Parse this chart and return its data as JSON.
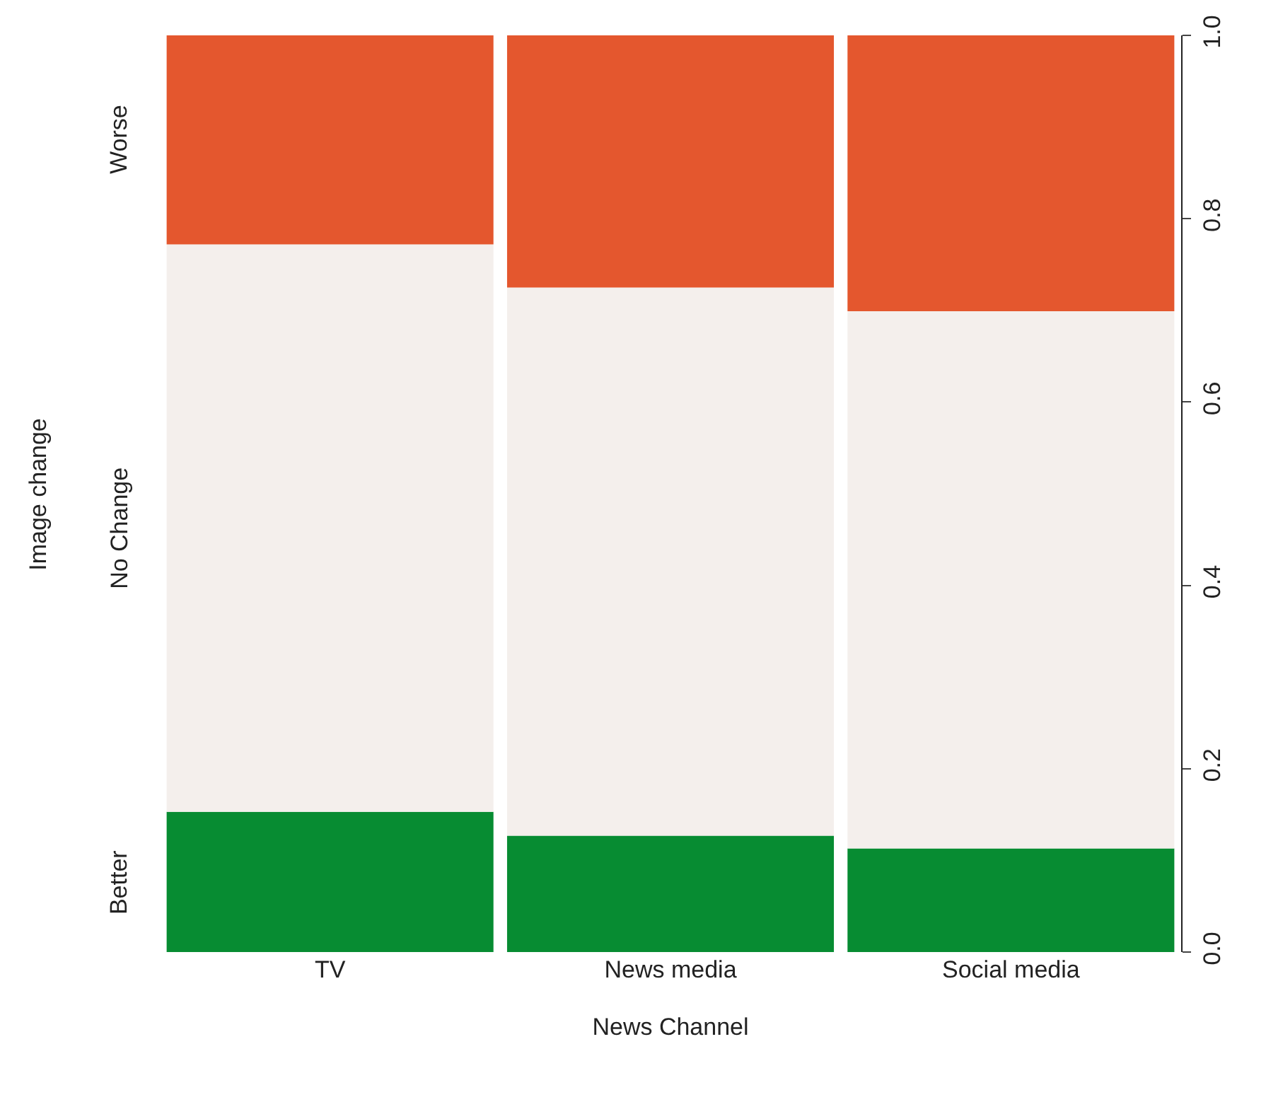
{
  "chart_data": {
    "type": "bar",
    "stacked": true,
    "xlabel": "News Channel",
    "ylabel": "Image change",
    "categories": [
      "TV",
      "News media",
      "Social media"
    ],
    "series": [
      {
        "name": "Better",
        "color": "#078c32",
        "values": [
          0.153,
          0.127,
          0.113
        ]
      },
      {
        "name": "No Change",
        "color": "#f4efec",
        "values": [
          0.619,
          0.598,
          0.586
        ]
      },
      {
        "name": "Worse",
        "color": "#e4572e",
        "values": [
          0.228,
          0.275,
          0.301
        ]
      }
    ],
    "ylim": [
      0,
      1
    ],
    "yticks": [
      {
        "value": 0,
        "label": "0.0"
      },
      {
        "value": 0.2,
        "label": "0.2"
      },
      {
        "value": 0.4,
        "label": "0.4"
      },
      {
        "value": 0.6,
        "label": "0.6"
      },
      {
        "value": 0.8,
        "label": "0.8"
      },
      {
        "value": 1,
        "label": "1.0"
      }
    ]
  }
}
